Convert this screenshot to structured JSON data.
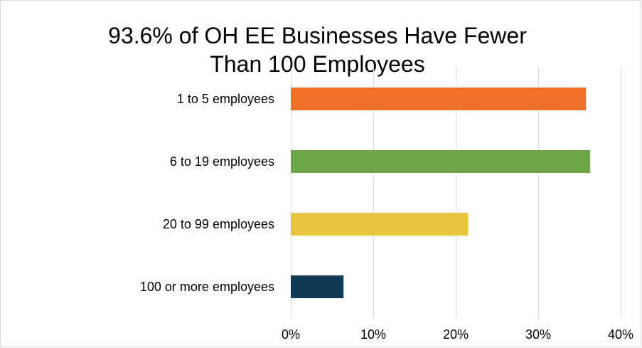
{
  "chart_data": {
    "type": "bar",
    "orientation": "horizontal",
    "title_lines": [
      "93.6% of OH EE Businesses Have Fewer",
      "Than 100 Employees"
    ],
    "categories": [
      "1 to 5 employees",
      "6 to 19 employees",
      "20 to 99 employees",
      "100 or more employees"
    ],
    "values": [
      35.8,
      36.3,
      21.5,
      6.4
    ],
    "colors": [
      "#f07027",
      "#6aa744",
      "#e9c440",
      "#0f3a55"
    ],
    "xlim": [
      0,
      40
    ],
    "x_ticks": [
      0,
      10,
      20,
      30,
      40
    ],
    "x_tick_labels": [
      "0%",
      "10%",
      "20%",
      "30%",
      "40%"
    ],
    "grid": "vertical",
    "legend": "none"
  }
}
